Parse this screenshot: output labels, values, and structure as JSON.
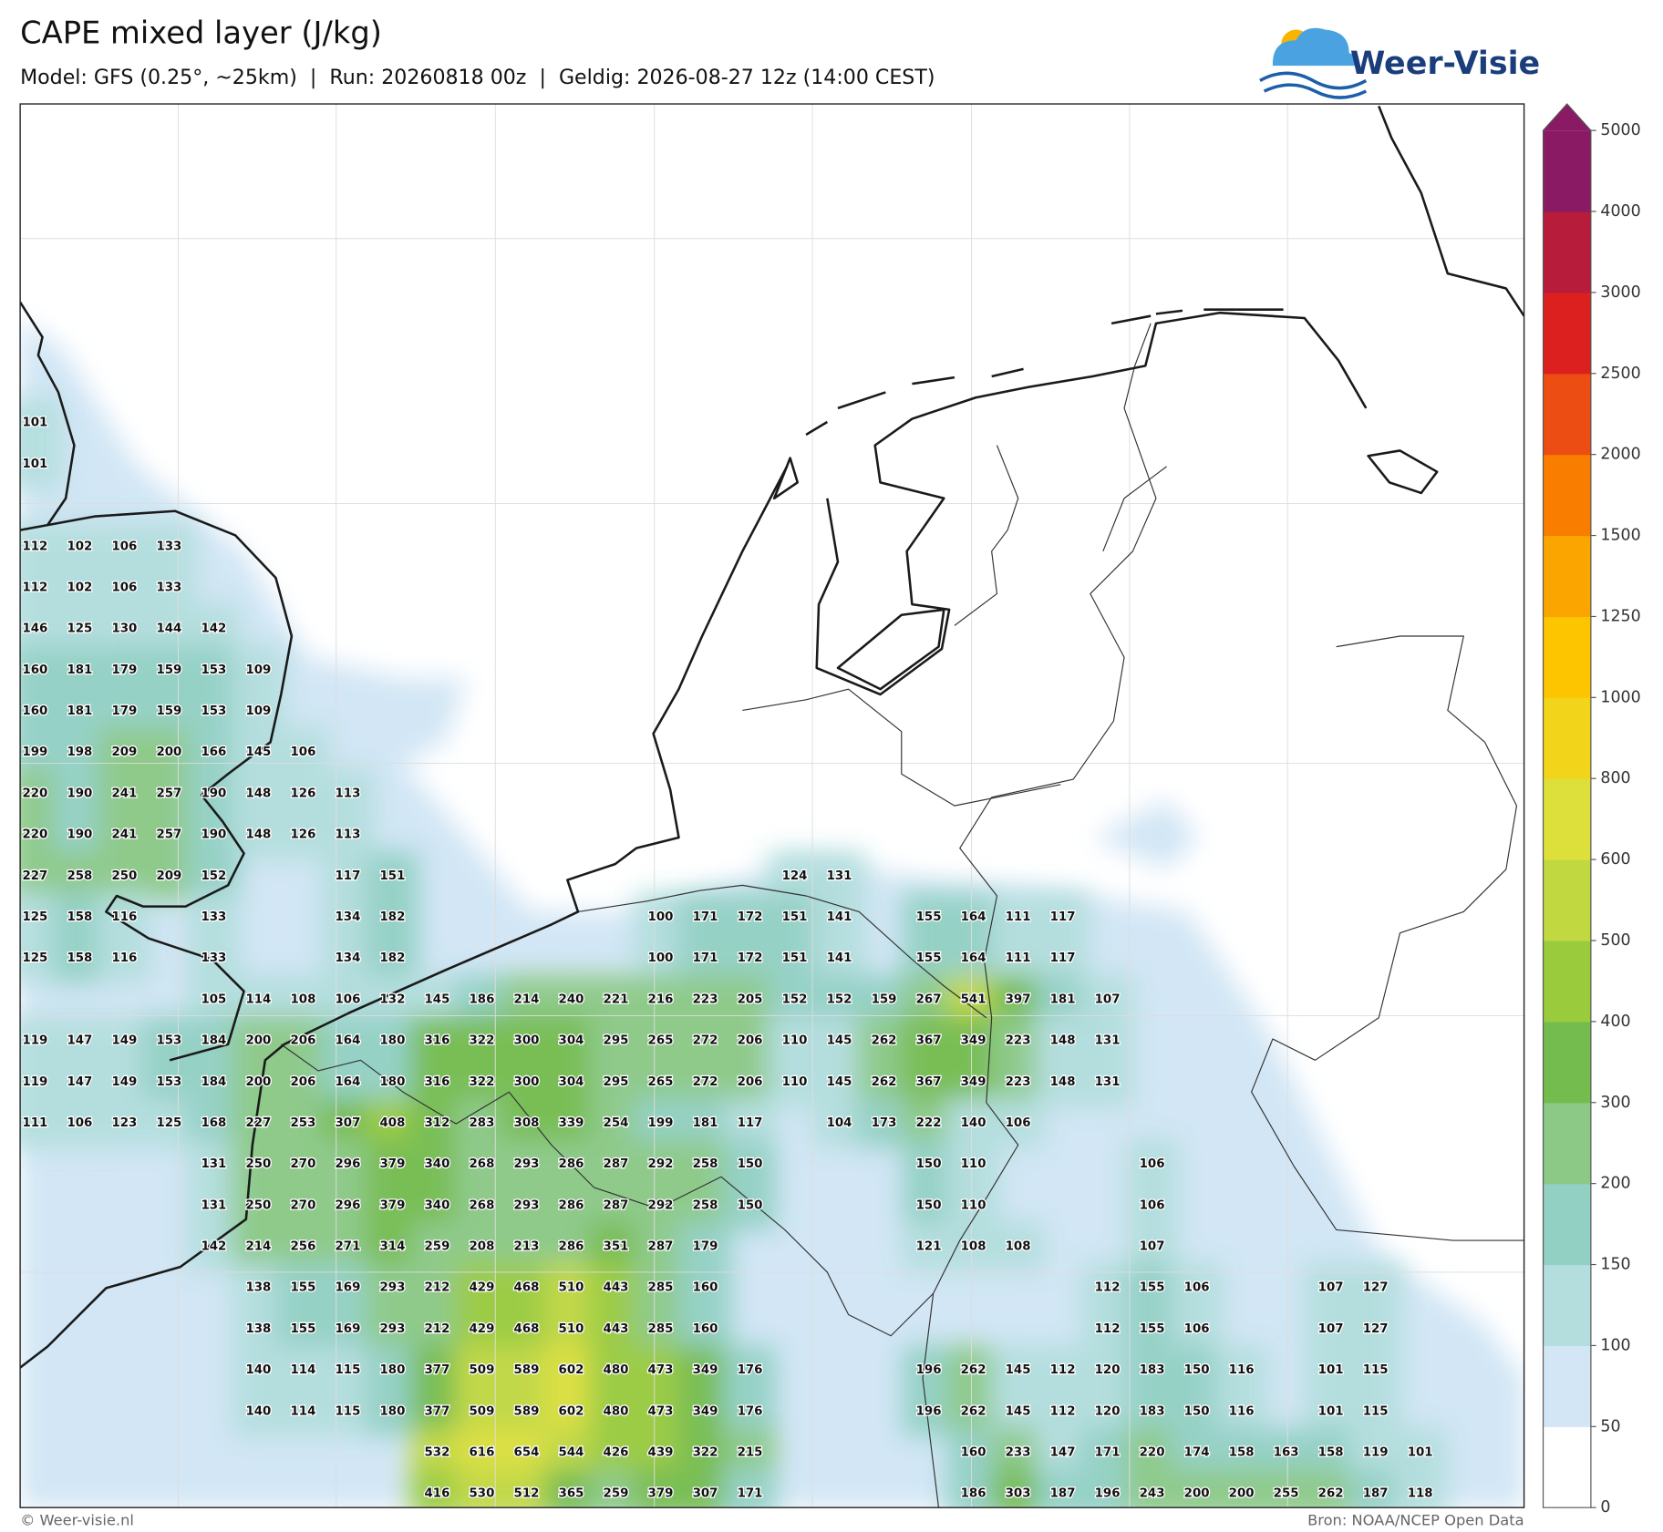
{
  "header": {
    "title": "CAPE mixed layer (J/kg)",
    "subtitle": "Model: GFS (0.25°, ~25km)  |  Run: 20260818 00z  |  Geldig: 2026-08-27 12z (14:00 CEST)",
    "logo": "Weer-Visie"
  },
  "colorbar": {
    "levels": [
      0,
      50,
      100,
      150,
      200,
      300,
      400,
      500,
      600,
      800,
      1000,
      1250,
      1500,
      2000,
      2500,
      3000,
      4000,
      5000
    ],
    "colors": [
      "#ffffff",
      "#d2e6f5",
      "#b3dedd",
      "#93d0c4",
      "#8cc986",
      "#74bc4e",
      "#9acb3d",
      "#c1d841",
      "#dde03b",
      "#f2d51a",
      "#fdc400",
      "#fba600",
      "#f97e00",
      "#eb4d12",
      "#dc2020",
      "#b71d3b",
      "#8b1a64"
    ]
  },
  "map": {
    "values": [
      [
        101,
        null,
        null,
        null,
        null,
        null,
        null,
        null,
        null,
        null,
        null,
        null,
        null,
        null,
        null,
        null,
        null,
        null,
        null,
        null,
        null,
        null,
        null,
        null,
        null,
        null,
        null,
        null,
        null,
        null,
        null,
        null
      ],
      [
        101,
        null,
        null,
        null,
        null,
        null,
        null,
        null,
        null,
        null,
        null,
        null,
        null,
        null,
        null,
        null,
        null,
        null,
        null,
        null,
        null,
        null,
        null,
        null,
        null,
        null,
        null,
        null,
        null,
        null,
        null,
        null
      ],
      [
        null,
        null,
        null,
        null,
        null,
        null,
        null,
        null,
        null,
        null,
        null,
        null,
        null,
        null,
        null,
        null,
        null,
        null,
        null,
        null,
        null,
        null,
        null,
        null,
        null,
        null,
        null,
        null,
        null,
        null,
        null,
        null
      ],
      [
        112,
        102,
        106,
        133,
        null,
        null,
        null,
        null,
        null,
        null,
        null,
        null,
        null,
        null,
        null,
        null,
        null,
        null,
        null,
        null,
        null,
        null,
        null,
        null,
        null,
        null,
        null,
        null,
        null,
        null,
        null,
        null
      ],
      [
        112,
        102,
        106,
        133,
        null,
        null,
        null,
        null,
        null,
        null,
        null,
        null,
        null,
        null,
        null,
        null,
        null,
        null,
        null,
        null,
        null,
        null,
        null,
        null,
        null,
        null,
        null,
        null,
        null,
        null,
        null,
        null
      ],
      [
        146,
        125,
        130,
        144,
        142,
        null,
        null,
        null,
        null,
        null,
        null,
        null,
        null,
        null,
        null,
        null,
        null,
        null,
        null,
        null,
        null,
        null,
        null,
        null,
        null,
        null,
        null,
        null,
        null,
        null,
        null,
        null
      ],
      [
        160,
        181,
        179,
        159,
        153,
        109,
        null,
        null,
        null,
        null,
        null,
        null,
        null,
        null,
        null,
        null,
        null,
        null,
        null,
        null,
        null,
        null,
        null,
        null,
        null,
        null,
        null,
        null,
        null,
        null,
        null,
        null
      ],
      [
        160,
        181,
        179,
        159,
        153,
        109,
        null,
        null,
        null,
        null,
        null,
        null,
        null,
        null,
        null,
        null,
        null,
        null,
        null,
        null,
        null,
        null,
        null,
        null,
        null,
        null,
        null,
        null,
        null,
        null,
        null,
        null
      ],
      [
        199,
        198,
        209,
        200,
        166,
        145,
        106,
        null,
        null,
        null,
        null,
        null,
        null,
        null,
        null,
        null,
        null,
        null,
        null,
        null,
        null,
        null,
        null,
        null,
        null,
        null,
        null,
        null,
        null,
        null,
        null,
        null
      ],
      [
        220,
        190,
        241,
        257,
        190,
        148,
        126,
        113,
        null,
        null,
        null,
        null,
        null,
        null,
        null,
        null,
        null,
        null,
        null,
        null,
        null,
        null,
        null,
        null,
        null,
        null,
        null,
        null,
        null,
        null,
        null,
        null
      ],
      [
        220,
        190,
        241,
        257,
        190,
        148,
        126,
        113,
        null,
        null,
        null,
        null,
        null,
        null,
        null,
        null,
        null,
        null,
        null,
        null,
        null,
        null,
        null,
        null,
        null,
        null,
        null,
        null,
        null,
        null,
        null,
        null
      ],
      [
        227,
        258,
        250,
        209,
        152,
        null,
        null,
        117,
        151,
        null,
        null,
        null,
        null,
        null,
        null,
        null,
        null,
        124,
        131,
        null,
        null,
        null,
        null,
        null,
        null,
        null,
        null,
        null,
        null,
        null,
        null,
        null
      ],
      [
        125,
        158,
        116,
        null,
        133,
        null,
        null,
        134,
        182,
        null,
        null,
        null,
        null,
        null,
        100,
        171,
        172,
        151,
        141,
        null,
        155,
        164,
        111,
        117,
        null,
        null,
        null,
        null,
        null,
        null,
        null,
        null
      ],
      [
        125,
        158,
        116,
        null,
        133,
        null,
        null,
        134,
        182,
        null,
        null,
        null,
        null,
        null,
        100,
        171,
        172,
        151,
        141,
        null,
        155,
        164,
        111,
        117,
        null,
        null,
        null,
        null,
        null,
        null,
        null,
        null
      ],
      [
        null,
        null,
        null,
        null,
        105,
        114,
        108,
        106,
        132,
        145,
        186,
        214,
        240,
        221,
        216,
        223,
        205,
        152,
        152,
        159,
        267,
        541,
        397,
        181,
        107,
        null,
        null,
        null,
        null,
        null,
        null,
        null
      ],
      [
        119,
        147,
        149,
        153,
        184,
        200,
        206,
        164,
        180,
        316,
        322,
        300,
        304,
        295,
        265,
        272,
        206,
        110,
        145,
        262,
        367,
        349,
        223,
        148,
        131,
        null,
        null,
        null,
        null,
        null,
        null,
        null
      ],
      [
        119,
        147,
        149,
        153,
        184,
        200,
        206,
        164,
        180,
        316,
        322,
        300,
        304,
        295,
        265,
        272,
        206,
        110,
        145,
        262,
        367,
        349,
        223,
        148,
        131,
        null,
        null,
        null,
        null,
        null,
        null,
        null
      ],
      [
        111,
        106,
        123,
        125,
        168,
        227,
        253,
        307,
        408,
        312,
        283,
        308,
        339,
        254,
        199,
        181,
        117,
        null,
        104,
        173,
        222,
        140,
        106,
        null,
        null,
        null,
        null,
        null,
        null,
        null,
        null,
        null
      ],
      [
        null,
        null,
        null,
        null,
        131,
        250,
        270,
        296,
        379,
        340,
        268,
        293,
        286,
        287,
        292,
        258,
        150,
        null,
        null,
        null,
        150,
        110,
        null,
        null,
        null,
        106,
        null,
        null,
        null,
        null,
        null,
        null
      ],
      [
        null,
        null,
        null,
        null,
        131,
        250,
        270,
        296,
        379,
        340,
        268,
        293,
        286,
        287,
        292,
        258,
        150,
        null,
        null,
        null,
        150,
        110,
        null,
        null,
        null,
        106,
        null,
        null,
        null,
        null,
        null,
        null
      ],
      [
        null,
        null,
        null,
        null,
        142,
        214,
        256,
        271,
        314,
        259,
        208,
        213,
        286,
        351,
        287,
        179,
        null,
        null,
        null,
        null,
        121,
        108,
        108,
        null,
        null,
        107,
        null,
        null,
        null,
        null,
        null,
        null
      ],
      [
        null,
        null,
        null,
        null,
        null,
        138,
        155,
        169,
        293,
        212,
        429,
        468,
        510,
        443,
        285,
        160,
        null,
        null,
        null,
        null,
        null,
        null,
        null,
        null,
        112,
        155,
        106,
        null,
        null,
        107,
        127,
        null
      ],
      [
        null,
        null,
        null,
        null,
        null,
        138,
        155,
        169,
        293,
        212,
        429,
        468,
        510,
        443,
        285,
        160,
        null,
        null,
        null,
        null,
        null,
        null,
        null,
        null,
        112,
        155,
        106,
        null,
        null,
        107,
        127,
        null
      ],
      [
        null,
        null,
        null,
        null,
        null,
        140,
        114,
        115,
        180,
        377,
        509,
        589,
        602,
        480,
        473,
        349,
        176,
        null,
        null,
        null,
        196,
        262,
        145,
        112,
        120,
        183,
        150,
        116,
        null,
        101,
        115,
        null
      ],
      [
        null,
        null,
        null,
        null,
        null,
        140,
        114,
        115,
        180,
        377,
        509,
        589,
        602,
        480,
        473,
        349,
        176,
        null,
        null,
        null,
        196,
        262,
        145,
        112,
        120,
        183,
        150,
        116,
        null,
        101,
        115,
        null
      ],
      [
        null,
        null,
        null,
        null,
        null,
        null,
        null,
        null,
        null,
        532,
        616,
        654,
        544,
        426,
        439,
        322,
        215,
        null,
        null,
        null,
        null,
        160,
        233,
        147,
        171,
        220,
        174,
        158,
        163,
        158,
        119,
        101
      ],
      [
        null,
        null,
        null,
        null,
        null,
        null,
        null,
        null,
        null,
        416,
        530,
        512,
        365,
        259,
        379,
        307,
        171,
        null,
        null,
        null,
        null,
        186,
        303,
        187,
        196,
        243,
        200,
        200,
        255,
        262,
        187,
        118
      ]
    ]
  },
  "footer": {
    "left": "© Weer-visie.nl",
    "right": "Bron: NOAA/NCEP Open Data"
  }
}
